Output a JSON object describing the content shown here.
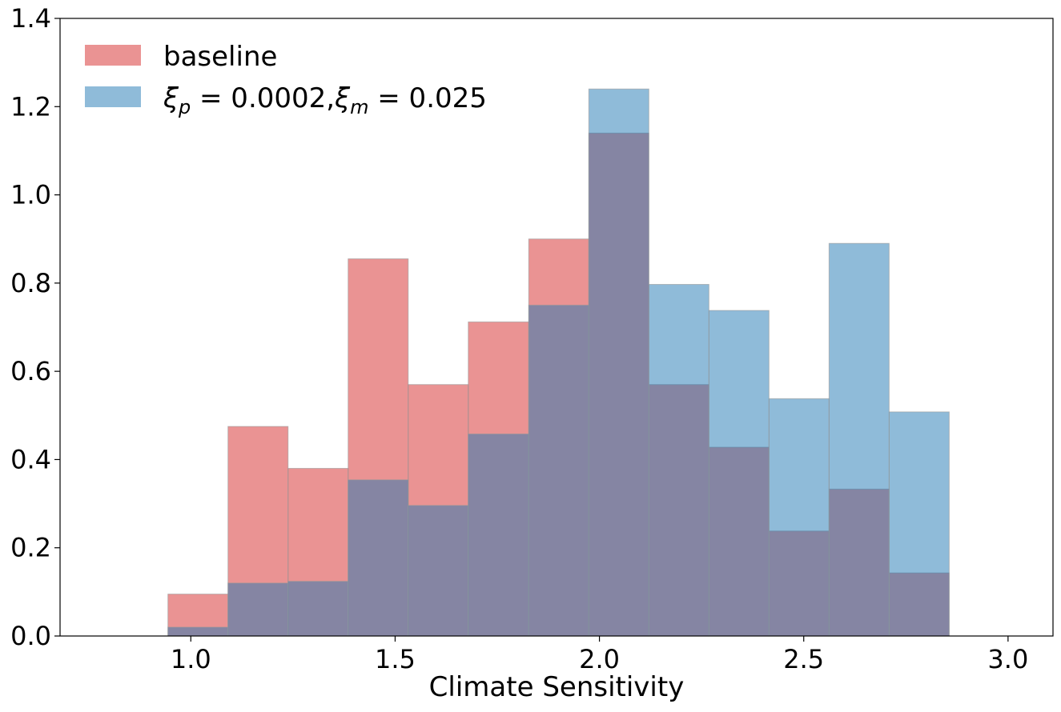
{
  "chart_data": {
    "type": "bar",
    "subtype": "overlapping-histogram",
    "title": "",
    "xlabel": "Climate Sensitivity",
    "ylabel": "",
    "xlim": [
      0.68,
      3.11
    ],
    "ylim": [
      0.0,
      1.4
    ],
    "grid": false,
    "legend_position": "top-left",
    "x_ticks": [
      1.0,
      1.5,
      2.0,
      2.5,
      3.0
    ],
    "x_tick_labels": [
      "1.0",
      "1.5",
      "2.0",
      "2.5",
      "3.0"
    ],
    "y_ticks": [
      0.0,
      0.2,
      0.4,
      0.6,
      0.8,
      1.0,
      1.2,
      1.4
    ],
    "y_tick_labels": [
      "0.0",
      "0.2",
      "0.4",
      "0.6",
      "0.8",
      "1.0",
      "1.2",
      "1.4"
    ],
    "bin_edges": [
      0.944,
      1.091,
      1.238,
      1.385,
      1.532,
      1.679,
      1.827,
      1.974,
      2.121,
      2.268,
      2.415,
      2.562,
      2.709,
      2.856
    ],
    "series": [
      {
        "name": "baseline",
        "color": "#d62728",
        "opacity": 0.5,
        "values": [
          0.095,
          0.475,
          0.38,
          0.855,
          0.57,
          0.712,
          0.9,
          1.14,
          0.57,
          0.428,
          0.238,
          0.333,
          0.143
        ]
      },
      {
        "name": "ξp=0.0002,ξm=0.025",
        "legend_parts": {
          "xi1": "ξ",
          "sub1": "p",
          "mid": " = 0.0002,",
          "xi2": "ξ",
          "sub2": "m",
          "end": " = 0.025"
        },
        "color": "#1f77b4",
        "opacity": 0.5,
        "values": [
          0.02,
          0.12,
          0.124,
          0.354,
          0.296,
          0.458,
          0.75,
          1.24,
          0.797,
          0.738,
          0.538,
          0.89,
          0.508
        ]
      }
    ]
  }
}
